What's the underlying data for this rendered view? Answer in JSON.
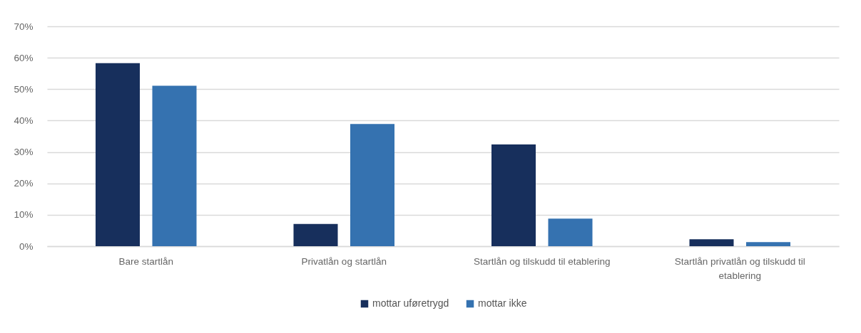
{
  "chart_data": {
    "type": "bar",
    "categories": [
      "Bare startlån",
      "Privatlån og startlån",
      "Startlån og tilskudd til etablering",
      "Startlån privatlån og tilskudd til etablering"
    ],
    "series": [
      {
        "name": "mottar uføretrygd",
        "color": "#172f5c",
        "values": [
          58.3,
          7.1,
          32.4,
          2.2
        ]
      },
      {
        "name": "mottar ikke",
        "color": "#3572b0",
        "values": [
          51.1,
          38.9,
          8.8,
          1.3
        ]
      }
    ],
    "ylim": [
      0,
      70
    ],
    "yticks": [
      {
        "value": 0,
        "label": "0%"
      },
      {
        "value": 10,
        "label": "10%"
      },
      {
        "value": 20,
        "label": "20%"
      },
      {
        "value": 30,
        "label": "30%"
      },
      {
        "value": 40,
        "label": "40%"
      },
      {
        "value": 50,
        "label": "50%"
      },
      {
        "value": 60,
        "label": "60%"
      },
      {
        "value": 70,
        "label": "70%"
      }
    ],
    "grid": "y",
    "legend": "bottom"
  }
}
